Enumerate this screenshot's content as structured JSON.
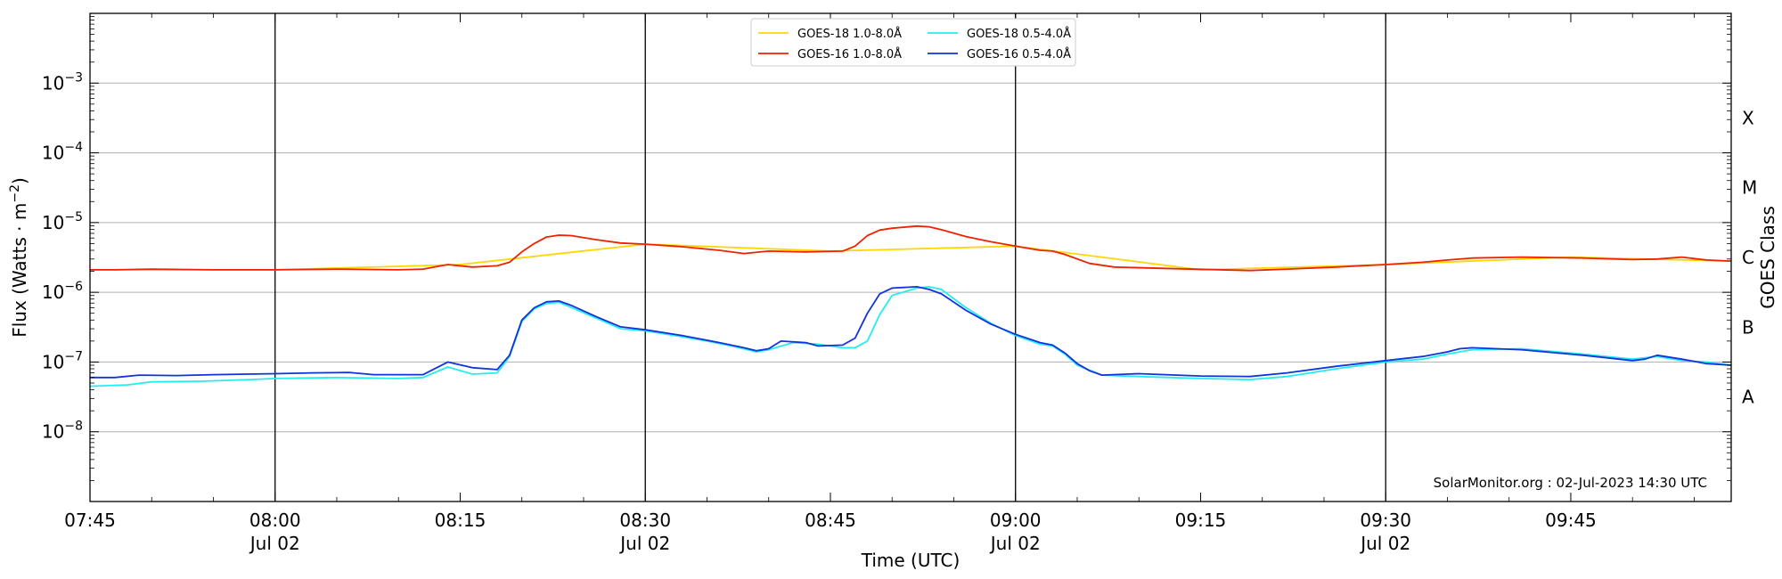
{
  "chart_data": {
    "type": "line",
    "xlabel": "Time (UTC)",
    "ylabel": "Flux (Watts · m⁻²)",
    "ylabel_right": "GOES Class",
    "y_scale": "log",
    "ylim": [
      1e-09,
      0.01
    ],
    "xlim": [
      "2023-07-02 07:45",
      "2023-07-02 09:58"
    ],
    "grid": "horizontal",
    "legend_position": "top-center",
    "credit": "SolarMonitor.org : 02-Jul-2023 14:30 UTC",
    "y_ticks": [
      {
        "exp": "-8",
        "value": 1e-08
      },
      {
        "exp": "-7",
        "value": 1e-07
      },
      {
        "exp": "-6",
        "value": 1e-06
      },
      {
        "exp": "-5",
        "value": 1e-05
      },
      {
        "exp": "-4",
        "value": 0.0001
      },
      {
        "exp": "-3",
        "value": 0.001
      }
    ],
    "x_ticks": [
      {
        "time": "07:45",
        "date": ""
      },
      {
        "time": "08:00",
        "date": "Jul 02"
      },
      {
        "time": "08:15",
        "date": ""
      },
      {
        "time": "08:30",
        "date": "Jul 02"
      },
      {
        "time": "08:45",
        "date": ""
      },
      {
        "time": "09:00",
        "date": "Jul 02"
      },
      {
        "time": "09:15",
        "date": ""
      },
      {
        "time": "09:30",
        "date": "Jul 02"
      },
      {
        "time": "09:45",
        "date": ""
      }
    ],
    "vlines": [
      "08:00",
      "08:30",
      "09:00",
      "09:30"
    ],
    "goes_classes": [
      {
        "label": "A",
        "value": 3.16e-08
      },
      {
        "label": "B",
        "value": 3.16e-07
      },
      {
        "label": "C",
        "value": 3.16e-06
      },
      {
        "label": "M",
        "value": 3.16e-05
      },
      {
        "label": "X",
        "value": 0.000316
      }
    ],
    "series": [
      {
        "name": "GOES-18 1.0-8.0Å",
        "color": "#ffd700",
        "x": [
          "07:45",
          "08:00",
          "08:15",
          "08:30",
          "08:45",
          "09:00",
          "09:15",
          "09:30",
          "09:45",
          "09:58"
        ],
        "values": [
          2.1e-06,
          2.1e-06,
          2.5e-06,
          4.9e-06,
          3.9e-06,
          4.6e-06,
          2.1e-06,
          2.5e-06,
          3.2e-06,
          2.8e-06
        ]
      },
      {
        "name": "GOES-16 1.0-8.0Å",
        "color": "#ee2200",
        "x": [
          "07:45",
          "07:47",
          "07:50",
          "07:55",
          "08:00",
          "08:05",
          "08:10",
          "08:12",
          "08:14",
          "08:16",
          "08:18",
          "08:19",
          "08:20",
          "08:21",
          "08:22",
          "08:23",
          "08:24",
          "08:26",
          "08:28",
          "08:30",
          "08:33",
          "08:36",
          "08:38",
          "08:40",
          "08:43",
          "08:46",
          "08:47",
          "08:48",
          "08:49",
          "08:50",
          "08:52",
          "08:53",
          "08:54",
          "08:56",
          "08:58",
          "09:00",
          "09:02",
          "09:03",
          "09:04",
          "09:06",
          "09:08",
          "09:12",
          "09:19",
          "09:22",
          "09:26",
          "09:30",
          "09:33",
          "09:35",
          "09:37",
          "09:41",
          "09:46",
          "09:50",
          "09:52",
          "09:54",
          "09:56",
          "09:58"
        ],
        "values": [
          2.1e-06,
          2.1e-06,
          2.15e-06,
          2.1e-06,
          2.1e-06,
          2.15e-06,
          2.1e-06,
          2.15e-06,
          2.5e-06,
          2.3e-06,
          2.4e-06,
          2.7e-06,
          3.8e-06,
          5e-06,
          6.2e-06,
          6.6e-06,
          6.5e-06,
          5.7e-06,
          5.1e-06,
          4.9e-06,
          4.5e-06,
          4e-06,
          3.6e-06,
          3.9e-06,
          3.8e-06,
          3.9e-06,
          4.6e-06,
          6.5e-06,
          7.8e-06,
          8.3e-06,
          8.9e-06,
          8.7e-06,
          7.9e-06,
          6.3e-06,
          5.3e-06,
          4.6e-06,
          4e-06,
          3.9e-06,
          3.5e-06,
          2.6e-06,
          2.3e-06,
          2.2e-06,
          2.05e-06,
          2.15e-06,
          2.3e-06,
          2.5e-06,
          2.7e-06,
          2.9e-06,
          3.1e-06,
          3.2e-06,
          3.1e-06,
          2.95e-06,
          3e-06,
          3.2e-06,
          2.9e-06,
          2.8e-06
        ]
      },
      {
        "name": "GOES-18 0.5-4.0Å",
        "color": "#22eeee",
        "x": [
          "07:45",
          "07:48",
          "07:50",
          "07:54",
          "07:58",
          "08:00",
          "08:05",
          "08:10",
          "08:12",
          "08:14",
          "08:16",
          "08:18",
          "08:19",
          "08:20",
          "08:21",
          "08:22",
          "08:23",
          "08:25",
          "08:27",
          "08:28",
          "08:30",
          "08:33",
          "08:35",
          "08:37",
          "08:39",
          "08:40",
          "08:42",
          "08:44",
          "08:46",
          "08:47",
          "08:48",
          "08:49",
          "08:50",
          "08:52",
          "08:53",
          "08:54",
          "08:56",
          "08:58",
          "09:00",
          "09:02",
          "09:03",
          "09:04",
          "09:05",
          "09:07",
          "09:10",
          "09:15",
          "09:19",
          "09:22",
          "09:26",
          "09:30",
          "09:33",
          "09:35",
          "09:37",
          "09:41",
          "09:46",
          "09:50",
          "09:52",
          "09:54",
          "09:56",
          "09:58"
        ],
        "values": [
          4.5e-08,
          4.7e-08,
          5.2e-08,
          5.3e-08,
          5.6e-08,
          5.8e-08,
          6e-08,
          5.8e-08,
          6e-08,
          8.5e-08,
          6.7e-08,
          7e-08,
          1.2e-07,
          3.8e-07,
          5.8e-07,
          6.9e-07,
          7.2e-07,
          5.1e-07,
          3.6e-07,
          3e-07,
          2.8e-07,
          2.3e-07,
          2e-07,
          1.7e-07,
          1.4e-07,
          1.5e-07,
          1.9e-07,
          1.8e-07,
          1.6e-07,
          1.6e-07,
          2e-07,
          4.8e-07,
          9e-07,
          1.15e-06,
          1.2e-06,
          1.1e-06,
          6e-07,
          3.6e-07,
          2.4e-07,
          1.8e-07,
          1.7e-07,
          1.3e-07,
          9e-08,
          6.5e-08,
          6.2e-08,
          5.8e-08,
          5.6e-08,
          6.2e-08,
          8e-08,
          1e-07,
          1.1e-07,
          1.3e-07,
          1.5e-07,
          1.55e-07,
          1.3e-07,
          1.1e-07,
          1.2e-07,
          1.05e-07,
          1e-07,
          9e-08
        ]
      },
      {
        "name": "GOES-16 0.5-4.0Å",
        "color": "#1133dd",
        "x": [
          "07:45",
          "07:47",
          "07:49",
          "07:52",
          "07:55",
          "08:00",
          "08:03",
          "08:06",
          "08:08",
          "08:12",
          "08:14",
          "08:16",
          "08:18",
          "08:19",
          "08:20",
          "08:21",
          "08:22",
          "08:23",
          "08:24",
          "08:26",
          "08:28",
          "08:30",
          "08:33",
          "08:36",
          "08:38",
          "08:39",
          "08:40",
          "08:41",
          "08:43",
          "08:44",
          "08:46",
          "08:47",
          "08:48",
          "08:49",
          "08:50",
          "08:52",
          "08:53",
          "08:54",
          "08:56",
          "08:58",
          "09:00",
          "09:02",
          "09:03",
          "09:04",
          "09:05",
          "09:06",
          "09:07",
          "09:10",
          "09:15",
          "09:19",
          "09:22",
          "09:26",
          "09:30",
          "09:33",
          "09:35",
          "09:36",
          "09:37",
          "09:41",
          "09:46",
          "09:50",
          "09:51",
          "09:52",
          "09:54",
          "09:56",
          "09:58"
        ],
        "values": [
          6e-08,
          6e-08,
          6.5e-08,
          6.4e-08,
          6.6e-08,
          6.8e-08,
          7e-08,
          7.1e-08,
          6.6e-08,
          6.6e-08,
          1e-07,
          8.3e-08,
          7.8e-08,
          1.25e-07,
          4e-07,
          6e-07,
          7.3e-07,
          7.5e-07,
          6.5e-07,
          4.5e-07,
          3.2e-07,
          2.9e-07,
          2.4e-07,
          1.9e-07,
          1.6e-07,
          1.45e-07,
          1.55e-07,
          2e-07,
          1.9e-07,
          1.7e-07,
          1.75e-07,
          2.2e-07,
          5e-07,
          9.5e-07,
          1.15e-06,
          1.2e-06,
          1.1e-06,
          9.5e-07,
          5.5e-07,
          3.5e-07,
          2.5e-07,
          1.9e-07,
          1.75e-07,
          1.35e-07,
          9.5e-08,
          7.5e-08,
          6.5e-08,
          6.8e-08,
          6.3e-08,
          6.2e-08,
          7e-08,
          8.7e-08,
          1.05e-07,
          1.2e-07,
          1.4e-07,
          1.55e-07,
          1.6e-07,
          1.5e-07,
          1.25e-07,
          1.05e-07,
          1.1e-07,
          1.25e-07,
          1.1e-07,
          9.5e-08,
          9e-08
        ]
      }
    ]
  }
}
